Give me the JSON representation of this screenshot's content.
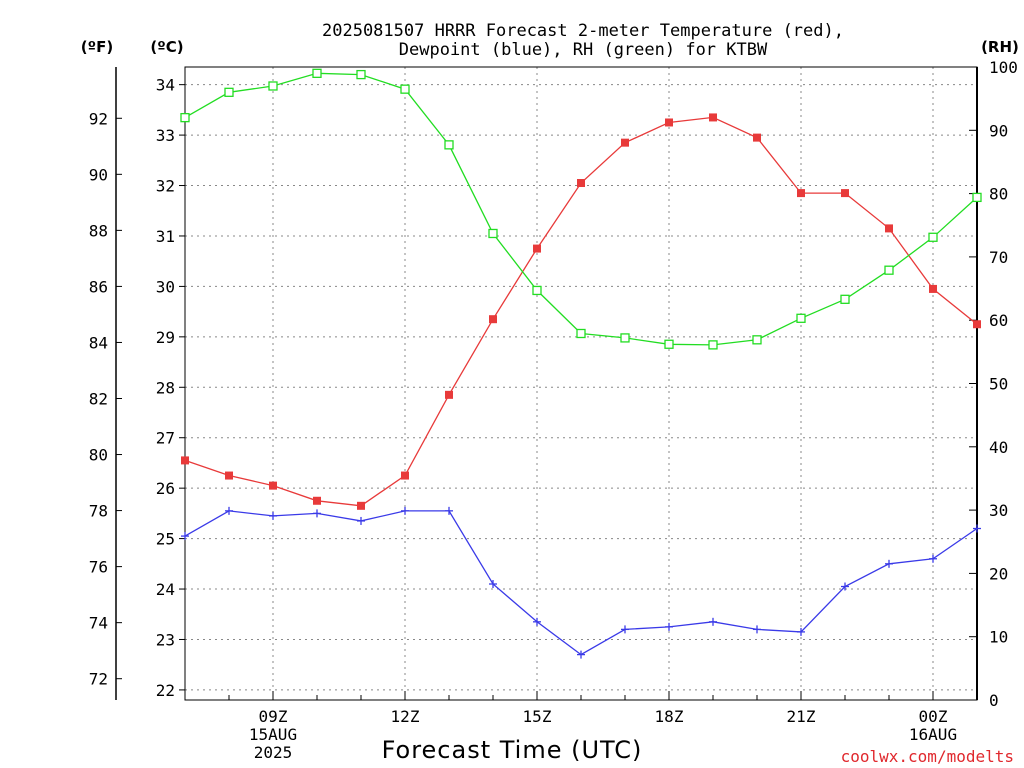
{
  "chart_data": {
    "type": "line",
    "title_lines": [
      "2025081507 HRRR Forecast 2-meter Temperature (red),",
      "Dewpoint (blue), RH (green) for KTBW"
    ],
    "xlabel": "Forecast Time (UTC)",
    "credit": "coolwx.com/modelts",
    "units": {
      "left_outer": "(ºF)",
      "left_inner": "(ºC)",
      "right": "(RH)"
    },
    "x_hours": [
      7,
      8,
      9,
      10,
      11,
      12,
      13,
      14,
      15,
      16,
      17,
      18,
      19,
      20,
      21,
      22,
      23,
      24,
      25
    ],
    "x_ticks": [
      {
        "hour": 9,
        "lines": [
          "09Z",
          "15AUG",
          "2025"
        ]
      },
      {
        "hour": 12,
        "lines": [
          "12Z"
        ]
      },
      {
        "hour": 15,
        "lines": [
          "15Z"
        ]
      },
      {
        "hour": 18,
        "lines": [
          "18Z"
        ]
      },
      {
        "hour": 21,
        "lines": [
          "21Z"
        ]
      },
      {
        "hour": 24,
        "lines": [
          "00Z",
          "16AUG"
        ]
      }
    ],
    "xlim": [
      7,
      25
    ],
    "celsius_axis": {
      "ylim": [
        21.8,
        34.35
      ],
      "ticks": [
        22,
        23,
        24,
        25,
        26,
        27,
        28,
        29,
        30,
        31,
        32,
        33,
        34
      ]
    },
    "fahrenheit_axis": {
      "ticks": [
        72,
        74,
        76,
        78,
        80,
        82,
        84,
        86,
        88,
        90,
        92
      ]
    },
    "rh_axis": {
      "ylim": [
        0,
        100
      ],
      "ticks": [
        0,
        10,
        20,
        30,
        40,
        50,
        60,
        70,
        80,
        90,
        100
      ]
    },
    "series": [
      {
        "name": "Temperature",
        "axis": "celsius",
        "color": "#e83a3a",
        "marker": "filled-square",
        "values": [
          26.55,
          26.25,
          26.05,
          25.75,
          25.65,
          26.25,
          27.85,
          29.35,
          30.75,
          32.05,
          32.85,
          33.25,
          33.35,
          32.95,
          31.85,
          31.85,
          31.15,
          29.95,
          29.25
        ]
      },
      {
        "name": "Dewpoint",
        "axis": "celsius",
        "color": "#3a3ae8",
        "marker": "plus",
        "values": [
          25.05,
          25.55,
          25.45,
          25.5,
          25.35,
          25.55,
          25.55,
          24.1,
          23.35,
          22.7,
          23.2,
          23.25,
          23.35,
          23.2,
          23.15,
          24.05,
          24.5,
          24.6,
          25.2
        ]
      },
      {
        "name": "RH",
        "axis": "rh",
        "color": "#22dd22",
        "marker": "open-square",
        "values": [
          92,
          96,
          97,
          99,
          98.8,
          96.5,
          87.7,
          73.7,
          64.7,
          57.9,
          57.2,
          56.2,
          56.1,
          56.9,
          60.3,
          63.3,
          67.9,
          73.1,
          79.4
        ]
      }
    ]
  }
}
